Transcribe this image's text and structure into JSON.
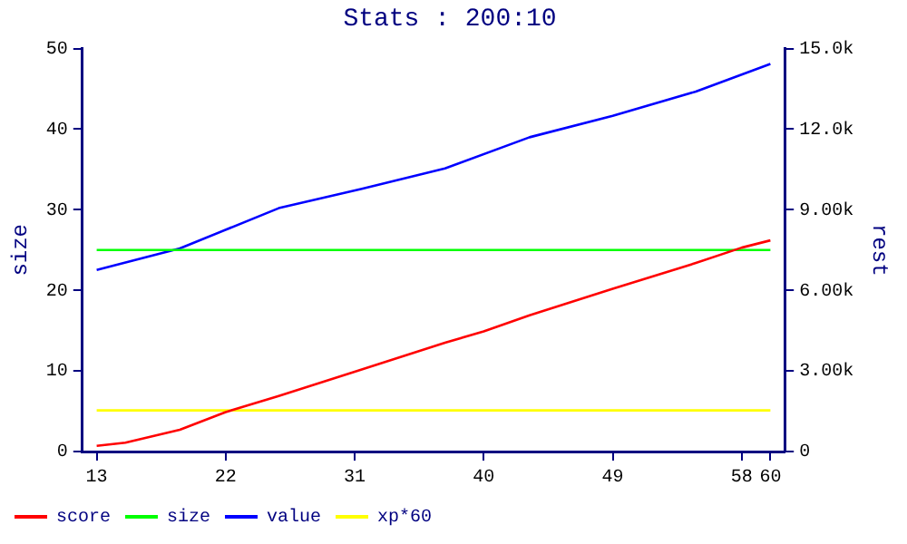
{
  "chart_data": {
    "type": "line",
    "title": "Stats : 200:10",
    "ylabel": "size",
    "y2label": "rest",
    "xlim": [
      12,
      61
    ],
    "xticks": [
      13,
      22,
      31,
      40,
      49,
      58,
      60
    ],
    "ylim": [
      0,
      50
    ],
    "yticks": [
      0,
      10,
      20,
      30,
      40,
      50
    ],
    "y2lim": [
      0,
      15000
    ],
    "y2ticks": [
      {
        "value": 0,
        "label": "0"
      },
      {
        "value": 3000,
        "label": "3.00k"
      },
      {
        "value": 6000,
        "label": "6.00k"
      },
      {
        "value": 9000,
        "label": "9.00k"
      },
      {
        "value": 12000,
        "label": "12.0k"
      },
      {
        "value": 15000,
        "label": "15.0k"
      }
    ],
    "grid": false,
    "legend": "bottom left",
    "marker": "none",
    "series": [
      {
        "name": "score",
        "color": "#ff0000",
        "x": [
          13,
          15,
          18.8,
          22,
          25.7,
          31,
          37.3,
          40,
          43.2,
          49,
          54.8,
          58,
          60
        ],
        "values": [
          0.7,
          1.1,
          2.7,
          4.9,
          6.9,
          9.9,
          13.5,
          14.9,
          16.9,
          20.2,
          23.4,
          25.3,
          26.2
        ]
      },
      {
        "name": "size",
        "color": "#00ff00",
        "x": [
          13,
          60
        ],
        "values": [
          25,
          25
        ]
      },
      {
        "name": "value",
        "color": "#0000ff",
        "axis": "y2",
        "x": [
          13,
          18.8,
          25.7,
          31.5,
          37.3,
          43.2,
          49,
          54.8,
          60
        ],
        "values": [
          6760,
          7560,
          9060,
          9780,
          10540,
          11700,
          12500,
          13400,
          14430
        ]
      },
      {
        "name": "xp*60",
        "color": "#ffff00",
        "x": [
          13,
          60
        ],
        "values": [
          5.1,
          5.1
        ]
      }
    ]
  }
}
